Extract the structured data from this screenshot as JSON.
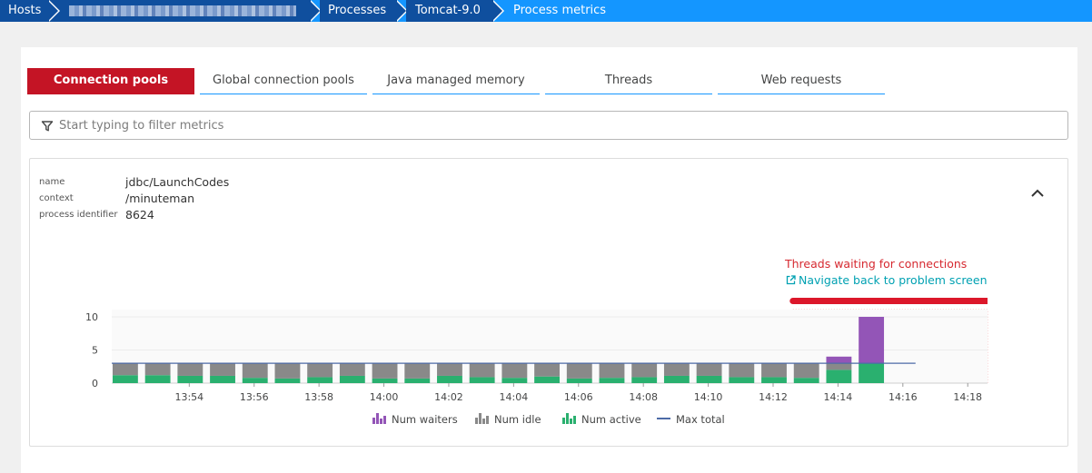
{
  "breadcrumb": {
    "items": [
      "Hosts",
      "",
      "Processes",
      "Tomcat-9.0",
      "Process metrics"
    ]
  },
  "tabs": [
    {
      "label": "Connection pools",
      "active": true
    },
    {
      "label": "Global connection pools",
      "active": false
    },
    {
      "label": "Java managed memory",
      "active": false
    },
    {
      "label": "Threads",
      "active": false
    },
    {
      "label": "Web requests",
      "active": false
    }
  ],
  "filter": {
    "placeholder": "Start typing to filter metrics",
    "value": ""
  },
  "metric": {
    "properties": [
      {
        "key": "name",
        "value": "jdbc/LaunchCodes"
      },
      {
        "key": "context",
        "value": "/minuteman"
      },
      {
        "key": "process identifier",
        "value": "8624"
      }
    ],
    "problem_title": "Threads waiting for connections",
    "problem_link": "Navigate back to problem screen"
  },
  "colors": {
    "accent": "#c41425",
    "breadcrumb_light": "#1496ff",
    "breadcrumb_dark": "#0f4f9e",
    "waiters": "#9355b7",
    "idle": "#898989",
    "active": "#2ab06f",
    "max_total": "#4d6ba7",
    "problem": "#dc172a",
    "problem_fill": "#fdeaea",
    "link": "#00a1b2"
  },
  "icons": {
    "filter": "funnel-icon",
    "collapse": "chevron-up-icon",
    "link": "external-link-icon"
  },
  "chart_data": {
    "type": "bar",
    "stacked": true,
    "ylim": [
      0,
      10
    ],
    "yticks": [
      0,
      5,
      10
    ],
    "xticks": [
      "13:54",
      "13:56",
      "13:58",
      "14:00",
      "14:02",
      "14:04",
      "14:06",
      "14:08",
      "14:10",
      "14:12",
      "14:14",
      "14:16",
      "14:18"
    ],
    "x_start": "13:52",
    "x_end": "14:19",
    "bar_interval_min": 1,
    "series": [
      {
        "name": "Num waiters",
        "values": [
          0,
          0,
          0,
          0,
          0,
          0,
          0,
          0,
          0,
          0,
          0,
          0,
          0,
          0,
          0,
          0,
          0,
          0,
          0,
          0,
          0,
          0,
          1,
          7
        ]
      },
      {
        "name": "Num idle",
        "values": [
          1.8,
          1.8,
          1.9,
          1.9,
          2.2,
          2.3,
          2.1,
          1.9,
          2.3,
          2.3,
          1.9,
          2.1,
          2.2,
          2,
          2.3,
          2.2,
          2.1,
          1.9,
          1.9,
          2.1,
          2.1,
          2.2,
          1,
          0
        ]
      },
      {
        "name": "Num active",
        "values": [
          1.2,
          1.2,
          1.1,
          1.1,
          0.8,
          0.7,
          0.9,
          1.1,
          0.7,
          0.7,
          1.1,
          0.9,
          0.8,
          1,
          0.7,
          0.8,
          0.9,
          1.1,
          1.1,
          0.9,
          0.9,
          0.8,
          2,
          3
        ]
      }
    ],
    "max_total": {
      "name": "Max total",
      "value": 3,
      "from": "13:52",
      "to": "14:16"
    },
    "problem": {
      "from": "14:13",
      "to": "14:19"
    },
    "legend": [
      "Num waiters",
      "Num idle",
      "Num active",
      "Max total"
    ],
    "legend_position": "bottom"
  }
}
